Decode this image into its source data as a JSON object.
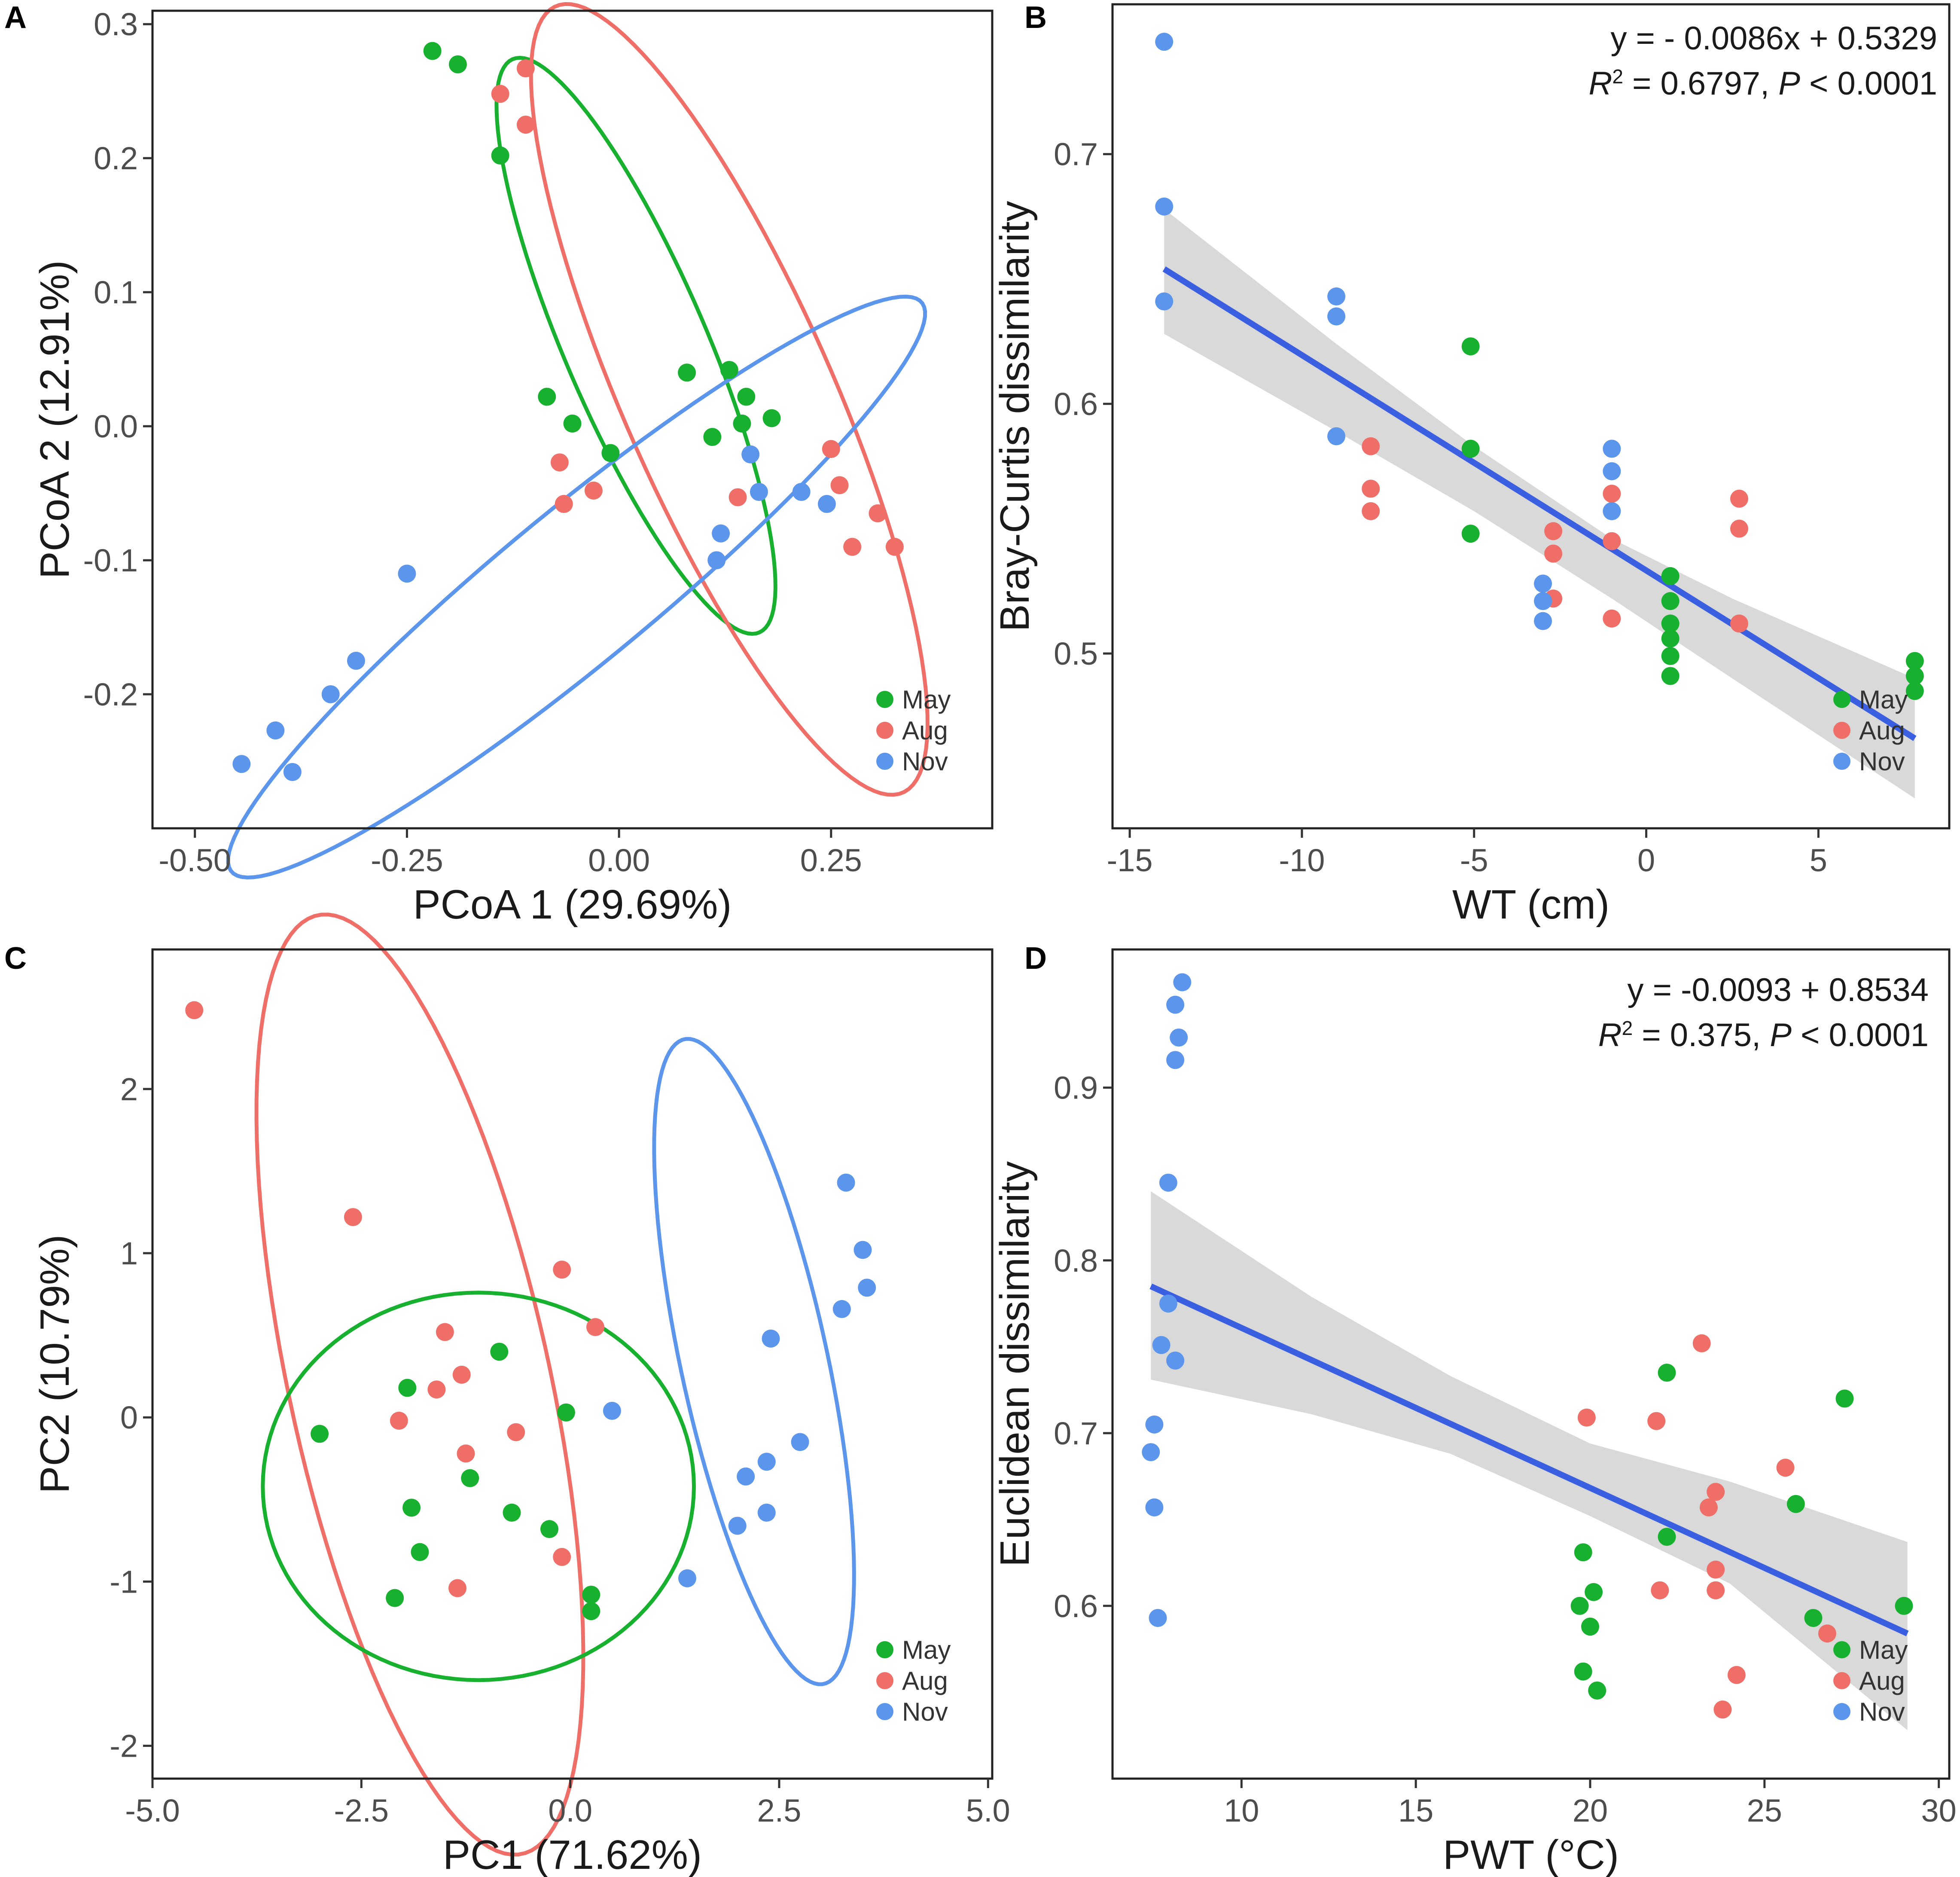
{
  "colors": {
    "May": "#17b12f",
    "Aug": "#ef6f68",
    "Nov": "#5b95ec",
    "reg_line": "#3a5fe0",
    "ci_band": "#d7d7d7"
  },
  "chart_data": [
    {
      "panel": "A",
      "type": "scatter",
      "xlabel": "PCoA 1 (29.69%)",
      "ylabel": "PCoA 2 (12.91%)",
      "xlim": [
        -0.55,
        0.44
      ],
      "ylim": [
        -0.3,
        0.31
      ],
      "xticks": [
        "-0.50",
        "-0.25",
        "0.00",
        "0.25"
      ],
      "yticks": [
        "0.3",
        "0.2",
        "0.1",
        "0.0",
        "-0.1",
        "-0.2"
      ],
      "xtick_values": [
        -0.5,
        -0.25,
        0.0,
        0.25
      ],
      "ytick_values": [
        0.3,
        0.2,
        0.1,
        0.0,
        -0.1,
        -0.2
      ],
      "legend": [
        "May",
        "Aug",
        "Nov"
      ],
      "series": [
        {
          "name": "May",
          "points": [
            [
              -0.22,
              0.28
            ],
            [
              -0.19,
              0.27
            ],
            [
              -0.14,
              0.202
            ],
            [
              -0.085,
              0.022
            ],
            [
              -0.055,
              0.002
            ],
            [
              -0.01,
              -0.02
            ],
            [
              0.08,
              0.04
            ],
            [
              0.13,
              0.042
            ],
            [
              0.15,
              0.022
            ],
            [
              0.11,
              -0.008
            ],
            [
              0.145,
              0.002
            ],
            [
              0.18,
              0.006
            ]
          ]
        },
        {
          "name": "Aug",
          "points": [
            [
              -0.11,
              0.267
            ],
            [
              -0.14,
              0.248
            ],
            [
              -0.11,
              0.225
            ],
            [
              -0.07,
              -0.027
            ],
            [
              -0.03,
              -0.048
            ],
            [
              -0.065,
              -0.058
            ],
            [
              0.14,
              -0.053
            ],
            [
              0.25,
              -0.017
            ],
            [
              0.26,
              -0.044
            ],
            [
              0.305,
              -0.065
            ],
            [
              0.275,
              -0.09
            ],
            [
              0.325,
              -0.09
            ]
          ]
        },
        {
          "name": "Nov",
          "points": [
            [
              0.155,
              -0.021
            ],
            [
              0.165,
              -0.049
            ],
            [
              0.215,
              -0.049
            ],
            [
              0.245,
              -0.058
            ],
            [
              0.12,
              -0.08
            ],
            [
              0.115,
              -0.1
            ],
            [
              -0.25,
              -0.11
            ],
            [
              -0.31,
              -0.175
            ],
            [
              -0.34,
              -0.2
            ],
            [
              -0.405,
              -0.227
            ],
            [
              -0.445,
              -0.252
            ],
            [
              -0.385,
              -0.258
            ]
          ]
        }
      ],
      "ellipses": [
        {
          "name": "May",
          "cx": 0.02,
          "cy": 0.06,
          "rx": 0.26,
          "ry": 0.075,
          "angle_deg": -54
        },
        {
          "name": "Aug",
          "cx": 0.13,
          "cy": 0.02,
          "rx": 0.36,
          "ry": 0.11,
          "angle_deg": -53
        },
        {
          "name": "Nov",
          "cx": -0.05,
          "cy": -0.12,
          "rx": 0.46,
          "ry": 0.065,
          "angle_deg": 27
        }
      ]
    },
    {
      "panel": "B",
      "type": "scatter",
      "xlabel": "WT (cm)",
      "ylabel": "Bray-Curtis dissimilarity",
      "xlim": [
        -15.5,
        8.8
      ],
      "ylim": [
        0.43,
        0.76
      ],
      "xticks": [
        "-15",
        "-10",
        "-5",
        "0",
        "5"
      ],
      "yticks": [
        "0.7",
        "0.6",
        "0.5"
      ],
      "xtick_values": [
        -15,
        -10,
        -5,
        0,
        5
      ],
      "ytick_values": [
        0.7,
        0.6,
        0.5
      ],
      "annotation": [
        "y = - 0.0086x + 0.5329",
        "R",
        "2",
        " = 0.6797, ",
        "P",
        " < 0.0001"
      ],
      "regression": {
        "x": [
          -14,
          7.8
        ],
        "y": [
          0.654,
          0.466
        ]
      },
      "ci_band": {
        "x": [
          -14,
          -9,
          -5,
          -1,
          2.5,
          7.8
        ],
        "upper": [
          0.678,
          0.624,
          0.583,
          0.546,
          0.522,
          0.49
        ],
        "lower": [
          0.628,
          0.589,
          0.557,
          0.522,
          0.49,
          0.442
        ]
      },
      "legend": [
        "May",
        "Aug",
        "Nov"
      ],
      "series": [
        {
          "name": "May",
          "points": [
            [
              -5.1,
              0.623
            ],
            [
              -5.1,
              0.582
            ],
            [
              -5.1,
              0.548
            ],
            [
              0.7,
              0.531
            ],
            [
              0.7,
              0.521
            ],
            [
              0.7,
              0.512
            ],
            [
              0.7,
              0.506
            ],
            [
              0.7,
              0.499
            ],
            [
              0.7,
              0.491
            ],
            [
              7.8,
              0.497
            ],
            [
              7.8,
              0.491
            ],
            [
              7.8,
              0.485
            ]
          ]
        },
        {
          "name": "Aug",
          "points": [
            [
              -8,
              0.583
            ],
            [
              -8,
              0.566
            ],
            [
              -8,
              0.557
            ],
            [
              -2.7,
              0.549
            ],
            [
              -2.7,
              0.54
            ],
            [
              -2.7,
              0.522
            ],
            [
              -1,
              0.564
            ],
            [
              -1,
              0.545
            ],
            [
              -1,
              0.514
            ],
            [
              2.7,
              0.562
            ],
            [
              2.7,
              0.55
            ],
            [
              2.7,
              0.512
            ]
          ]
        },
        {
          "name": "Nov",
          "points": [
            [
              -14,
              0.745
            ],
            [
              -14,
              0.679
            ],
            [
              -14,
              0.641
            ],
            [
              -9,
              0.643
            ],
            [
              -9,
              0.635
            ],
            [
              -9,
              0.587
            ],
            [
              -1,
              0.582
            ],
            [
              -1,
              0.573
            ],
            [
              -1,
              0.557
            ],
            [
              -3,
              0.528
            ],
            [
              -3,
              0.521
            ],
            [
              -3,
              0.513
            ]
          ]
        }
      ]
    },
    {
      "panel": "C",
      "type": "scatter",
      "xlabel": "PC1 (71.62%)",
      "ylabel": "PC2 (10.79%)",
      "xlim": [
        -5.0,
        5.05
      ],
      "ylim": [
        -2.2,
        2.85
      ],
      "xticks": [
        "-5.0",
        "-2.5",
        "0.0",
        "2.5",
        "5.0"
      ],
      "yticks": [
        "2",
        "1",
        "0",
        "-1",
        "-2"
      ],
      "xtick_values": [
        -5.0,
        -2.5,
        0.0,
        2.5,
        5.0
      ],
      "ytick_values": [
        2,
        1,
        0,
        -1,
        -2
      ],
      "legend": [
        "May",
        "Aug",
        "Nov"
      ],
      "series": [
        {
          "name": "May",
          "points": [
            [
              -3.0,
              -0.1
            ],
            [
              -1.95,
              0.18
            ],
            [
              -1.9,
              -0.55
            ],
            [
              -1.8,
              -0.82
            ],
            [
              -2.1,
              -1.1
            ],
            [
              -1.2,
              -0.37
            ],
            [
              -0.85,
              0.4
            ],
            [
              -0.7,
              -0.58
            ],
            [
              -0.25,
              -0.68
            ],
            [
              -0.05,
              0.03
            ],
            [
              0.25,
              -1.08
            ],
            [
              0.25,
              -1.18
            ]
          ]
        },
        {
          "name": "Aug",
          "points": [
            [
              -4.5,
              2.48
            ],
            [
              -2.6,
              1.22
            ],
            [
              -1.5,
              0.52
            ],
            [
              -1.6,
              0.17
            ],
            [
              -1.3,
              0.26
            ],
            [
              -2.05,
              -0.02
            ],
            [
              -1.25,
              -0.22
            ],
            [
              -0.65,
              -0.09
            ],
            [
              -0.1,
              0.9
            ],
            [
              0.3,
              0.55
            ],
            [
              -0.1,
              -0.85
            ],
            [
              -1.35,
              -1.04
            ]
          ]
        },
        {
          "name": "Nov",
          "points": [
            [
              3.3,
              1.43
            ],
            [
              3.5,
              1.02
            ],
            [
              3.55,
              0.79
            ],
            [
              3.25,
              0.66
            ],
            [
              2.4,
              0.48
            ],
            [
              0.5,
              0.04
            ],
            [
              2.75,
              -0.15
            ],
            [
              2.35,
              -0.27
            ],
            [
              2.1,
              -0.36
            ],
            [
              2.35,
              -0.58
            ],
            [
              2.0,
              -0.66
            ],
            [
              1.4,
              -0.98
            ]
          ]
        }
      ],
      "ellipses": [
        {
          "name": "Aug",
          "cx": -1.8,
          "cy": 0.2,
          "rx": 3.15,
          "ry": 1.45,
          "angle_deg": -62
        },
        {
          "name": "May",
          "cx": -1.1,
          "cy": -0.42,
          "rx": 2.58,
          "ry": 1.18,
          "angle_deg": 0
        },
        {
          "name": "Nov",
          "cx": 2.2,
          "cy": 0.34,
          "rx": 2.15,
          "ry": 0.82,
          "angle_deg": -64
        }
      ]
    },
    {
      "panel": "D",
      "type": "scatter",
      "xlabel": "PWT (°C)",
      "ylabel": "Euclidean dissimilarity",
      "xlim": [
        6.3,
        30.3
      ],
      "ylim": [
        0.5,
        0.98
      ],
      "xticks": [
        "10",
        "15",
        "20",
        "25",
        "30"
      ],
      "yticks": [
        "0.9",
        "0.8",
        "0.7",
        "0.6"
      ],
      "xtick_values": [
        10,
        15,
        20,
        25,
        30
      ],
      "ytick_values": [
        0.9,
        0.8,
        0.7,
        0.6
      ],
      "annotation": [
        "y = -0.0093 + 0.8534",
        "R",
        "2",
        " = 0.375, ",
        "P",
        " < 0.0001"
      ],
      "regression": {
        "x": [
          7.4,
          29.1
        ],
        "y": [
          0.785,
          0.584
        ]
      },
      "ci_band": {
        "x": [
          7.4,
          12,
          16,
          20,
          24,
          29.1
        ],
        "upper": [
          0.84,
          0.779,
          0.733,
          0.694,
          0.672,
          0.637
        ],
        "lower": [
          0.731,
          0.711,
          0.688,
          0.652,
          0.613,
          0.528
        ]
      },
      "legend": [
        "May",
        "Aug",
        "Nov"
      ],
      "series": [
        {
          "name": "May",
          "points": [
            [
              22.2,
              0.735
            ],
            [
              27.3,
              0.72
            ],
            [
              22.2,
              0.64
            ],
            [
              25.9,
              0.659
            ],
            [
              19.8,
              0.631
            ],
            [
              19.7,
              0.6
            ],
            [
              20.1,
              0.608
            ],
            [
              20.0,
              0.588
            ],
            [
              19.8,
              0.562
            ],
            [
              20.2,
              0.551
            ],
            [
              26.4,
              0.593
            ],
            [
              29.0,
              0.6
            ]
          ]
        },
        {
          "name": "Aug",
          "points": [
            [
              19.9,
              0.709
            ],
            [
              21.9,
              0.707
            ],
            [
              23.2,
              0.752
            ],
            [
              25.6,
              0.68
            ],
            [
              23.6,
              0.666
            ],
            [
              23.4,
              0.657
            ],
            [
              23.6,
              0.621
            ],
            [
              23.6,
              0.609
            ],
            [
              22.0,
              0.609
            ],
            [
              26.8,
              0.584
            ],
            [
              24.2,
              0.56
            ],
            [
              23.8,
              0.54
            ]
          ]
        },
        {
          "name": "Nov",
          "points": [
            [
              8.3,
              0.961
            ],
            [
              8.1,
              0.948
            ],
            [
              8.2,
              0.929
            ],
            [
              8.1,
              0.916
            ],
            [
              7.9,
              0.845
            ],
            [
              7.9,
              0.775
            ],
            [
              7.7,
              0.751
            ],
            [
              8.1,
              0.742
            ],
            [
              7.5,
              0.705
            ],
            [
              7.4,
              0.689
            ],
            [
              7.5,
              0.657
            ],
            [
              7.6,
              0.593
            ]
          ]
        }
      ]
    }
  ]
}
